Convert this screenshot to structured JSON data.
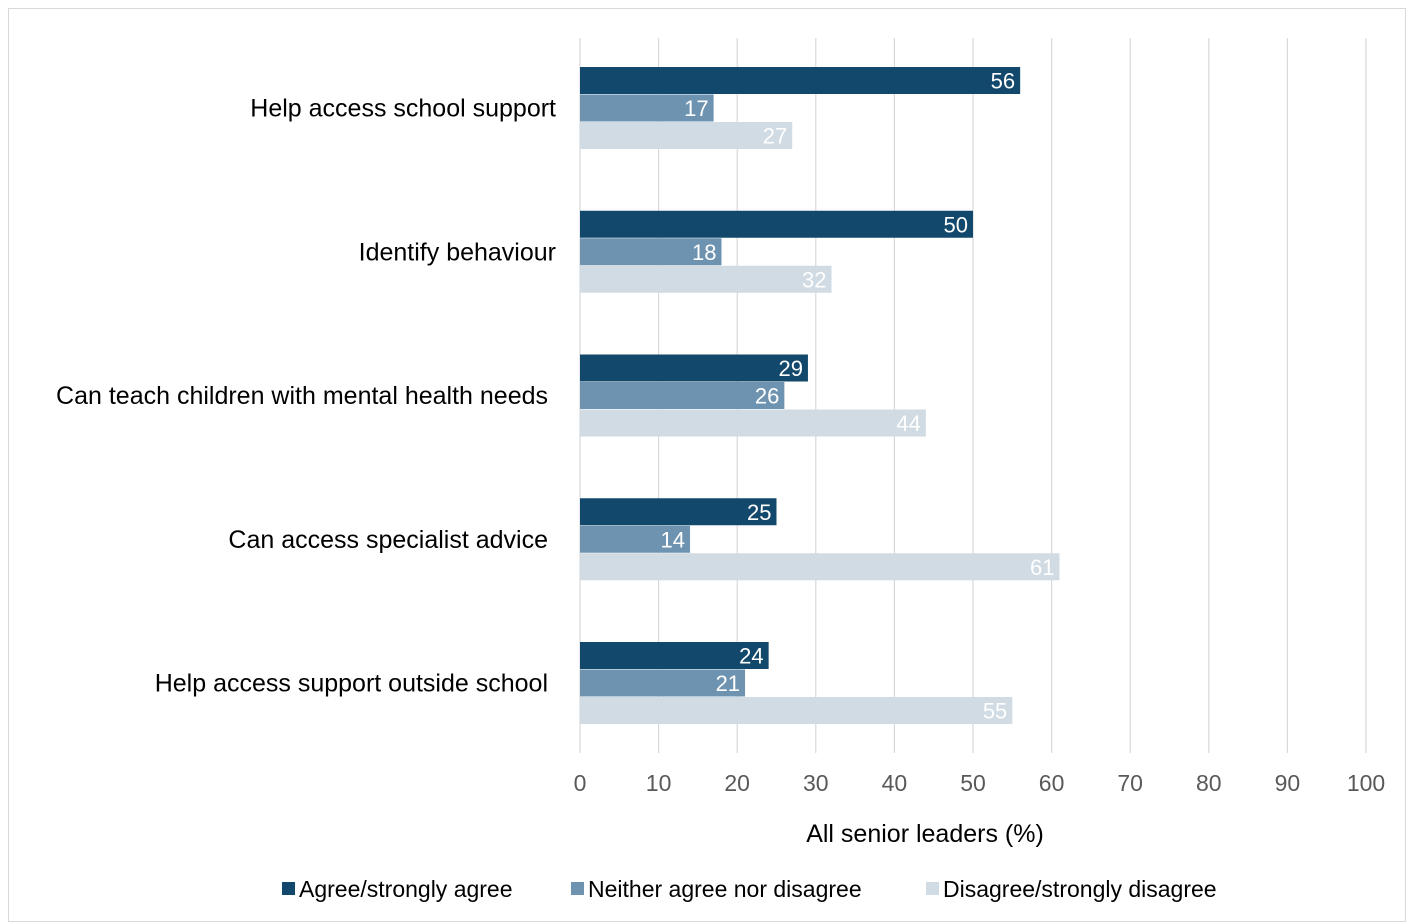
{
  "chart_data": {
    "type": "bar",
    "orientation": "horizontal",
    "title": "",
    "xlabel": "All senior leaders (%)",
    "ylabel": "",
    "xlim": [
      0,
      100
    ],
    "xticks": [
      0,
      10,
      20,
      30,
      40,
      50,
      60,
      70,
      80,
      90,
      100
    ],
    "grid": "vertical",
    "legend_position": "bottom",
    "categories": [
      "Help access school support",
      "Identify behaviour",
      "Can teach children with mental health needs",
      "Can access specialist advice",
      "Help access support outside school"
    ],
    "series": [
      {
        "name": "Agree/strongly agree",
        "color": "#12486b",
        "label_color": "#ffffff",
        "values": [
          56,
          50,
          29,
          25,
          24
        ]
      },
      {
        "name": "Neither agree nor disagree",
        "color": "#6d93b0",
        "label_color": "#ffffff",
        "values": [
          17,
          18,
          26,
          14,
          21
        ]
      },
      {
        "name": "Disagree/strongly disagree",
        "color": "#d0dbe3",
        "label_color": "#ffffff",
        "values": [
          27,
          32,
          44,
          61,
          55
        ]
      }
    ]
  }
}
